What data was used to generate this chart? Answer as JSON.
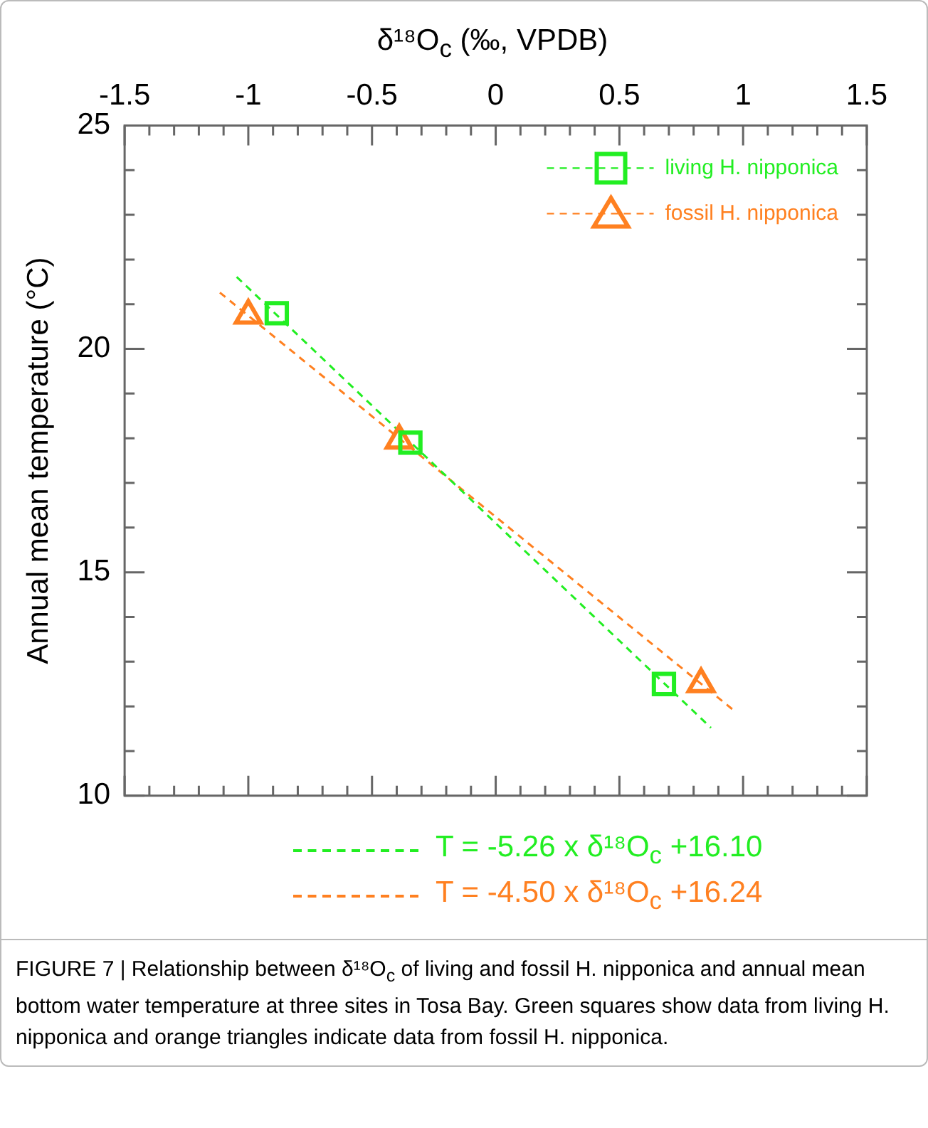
{
  "chart_data": {
    "type": "scatter",
    "xlabel": "δ¹⁸O$_{c}$ (‰, VPDB)",
    "ylabel": "Annual mean temperature (°C)",
    "xlim": [
      -1.5,
      1.5
    ],
    "ylim": [
      10,
      25
    ],
    "xticks": [
      -1.5,
      {
        "value": -1.4,
        "label": null
      },
      {
        "value": -1.3,
        "label": null
      },
      {
        "value": -1.2,
        "label": null
      },
      {
        "value": -1.1,
        "label": null
      },
      -1,
      {
        "value": -0.9,
        "label": null
      },
      {
        "value": -0.8,
        "label": null
      },
      {
        "value": -0.7,
        "label": null
      },
      {
        "value": -0.6,
        "label": null
      },
      -0.5,
      {
        "value": -0.4,
        "label": null
      },
      {
        "value": -0.3,
        "label": null
      },
      {
        "value": -0.2,
        "label": null
      },
      {
        "value": -0.1,
        "label": null
      },
      0,
      {
        "value": 0.1,
        "label": null
      },
      {
        "value": 0.2,
        "label": null
      },
      {
        "value": 0.3,
        "label": null
      },
      {
        "value": 0.4,
        "label": null
      },
      0.5,
      {
        "value": 0.6,
        "label": null
      },
      {
        "value": 0.7,
        "label": null
      },
      {
        "value": 0.8,
        "label": null
      },
      {
        "value": 0.9,
        "label": null
      },
      1,
      {
        "value": 1.1,
        "label": null
      },
      {
        "value": 1.2,
        "label": null
      },
      {
        "value": 1.3,
        "label": null
      },
      {
        "value": 1.4,
        "label": null
      },
      1.5
    ],
    "yticks": [
      10,
      {
        "value": 11,
        "label": null
      },
      {
        "value": 12,
        "label": null
      },
      {
        "value": 13,
        "label": null
      },
      {
        "value": 14,
        "label": null
      },
      15,
      {
        "value": 16,
        "label": null
      },
      {
        "value": 17,
        "label": null
      },
      {
        "value": 18,
        "label": null
      },
      {
        "value": 19,
        "label": null
      },
      20,
      {
        "value": 21,
        "label": null
      },
      {
        "value": 22,
        "label": null
      },
      {
        "value": 23,
        "label": null
      },
      {
        "value": 24,
        "label": null
      },
      25
    ],
    "grid": false,
    "legend": "top right",
    "series": [
      {
        "name": "living H. nipponica",
        "type": "scatter",
        "marker": "square",
        "color": "#22ee22",
        "x": [
          -0.885,
          -0.345,
          0.68
        ],
        "values": [
          20.8,
          17.9,
          12.5
        ]
      },
      {
        "name": "fossil H. nipponica",
        "type": "scatter",
        "marker": "triangle",
        "color": "#ff8020",
        "x": [
          -1.0,
          -0.39,
          0.83
        ],
        "values": [
          20.75,
          17.95,
          12.5
        ]
      },
      {
        "type": "line",
        "line_style": "dashed",
        "marker": "none",
        "color": "#22ee22",
        "x": [
          -1.047,
          0.87
        ],
        "values": [
          21.61,
          11.52
        ]
      },
      {
        "type": "line",
        "line_style": "dashed",
        "marker": "none",
        "color": "#ff8020",
        "x": [
          -1.115,
          0.96
        ],
        "values": [
          21.26,
          11.92
        ]
      }
    ],
    "annotations": [
      "T = -5.26 x δ¹⁸O$_{c}$ +16.10",
      "T = -4.50 x δ¹⁸O$_{c}$ +16.24",
      "FIGURE 7 | Relationship between δ¹⁸O$_{c}$ of living and fossil H. nipponica and annual mean bottom water temperature at three sites in Tosa Bay. Green squares show data from living H. nipponica and orange triangles indicate data from fossil H. nipponica."
    ]
  }
}
